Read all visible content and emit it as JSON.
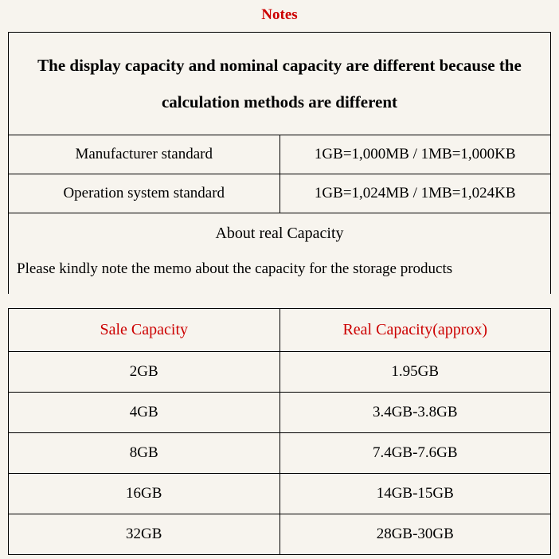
{
  "title": "Notes",
  "header_text": "The display capacity and nominal capacity are different because the calculation methods are different",
  "standards": [
    {
      "label": "Manufacturer standard",
      "value": "1GB=1,000MB / 1MB=1,000KB"
    },
    {
      "label": "Operation system standard",
      "value": "1GB=1,024MB / 1MB=1,024KB"
    }
  ],
  "about_title": "About real Capacity",
  "about_note": "Please kindly note the memo about the capacity for the storage products",
  "capacity_table": {
    "columns": [
      "Sale Capacity",
      "Real Capacity(approx)"
    ],
    "rows": [
      [
        "2GB",
        "1.95GB"
      ],
      [
        "4GB",
        "3.4GB-3.8GB"
      ],
      [
        "8GB",
        "7.4GB-7.6GB"
      ],
      [
        "16GB",
        "14GB-15GB"
      ],
      [
        "32GB",
        "28GB-30GB"
      ]
    ]
  },
  "colors": {
    "accent": "#cc0000",
    "text": "#000000",
    "background": "#f7f4ee",
    "border": "#000000"
  },
  "typography": {
    "font_family": "Times New Roman",
    "title_fontsize": 19,
    "header_fontsize": 21,
    "body_fontsize": 19
  }
}
